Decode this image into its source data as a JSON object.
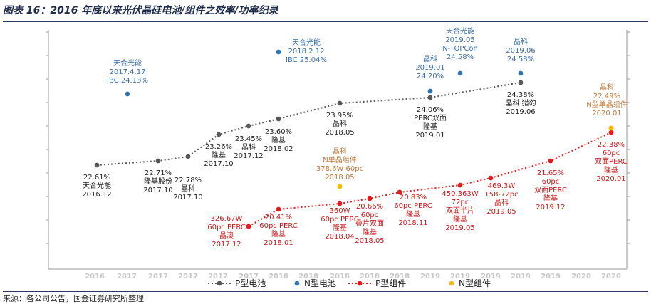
{
  "header": {
    "title": "图表 16：2016 年底以来光伏晶硅电池/组件之效率/功率纪录",
    "source": "来源：各公司公告，国金证券研究所整理"
  },
  "colors": {
    "p_cell": "#595959",
    "n_cell": "#2e75b6",
    "p_module": "#e31a1c",
    "n_module": "#f5b800"
  },
  "chart_data": {
    "type": "scatter",
    "title": "2016 年底以来光伏晶硅电池/组件之效率/功率纪录",
    "x_ticks": [
      "2016",
      "2017",
      "2017",
      "2017",
      "2017",
      "2017",
      "2018",
      "2018",
      "2018",
      "2018",
      "2018",
      "2019",
      "2019",
      "2019",
      "2019",
      "2019",
      "2020",
      "2020"
    ],
    "legend": [
      "P型电池",
      "N型电池",
      "P型组件",
      "N型组件"
    ],
    "series": [
      {
        "name": "P型电池",
        "style": "dotted-line-with-markers",
        "color_key": "p_cell",
        "points": [
          {
            "lines": [
              "22.61%",
              "天合光能",
              "2016.12"
            ]
          },
          {
            "lines": [
              "22.71%",
              "隆基股份",
              "2017.10"
            ]
          },
          {
            "lines": [
              "22.78%",
              "晶科",
              "2017.10"
            ]
          },
          {
            "lines": [
              "23.26%",
              "隆基",
              "2017.10"
            ]
          },
          {
            "lines": [
              "23.45%",
              "晶科",
              "2017.12"
            ]
          },
          {
            "lines": [
              "23.60%",
              "隆基",
              "2018.02"
            ]
          },
          {
            "lines": [
              "23.95%",
              "晶科",
              "2018.05"
            ]
          },
          {
            "lines": [
              "24.06%",
              "PERC双面",
              "隆基",
              "2019.01"
            ]
          },
          {
            "lines": [
              "24.38%",
              "晶科 猎豹",
              "2019.06"
            ]
          }
        ]
      },
      {
        "name": "N型电池",
        "style": "markers",
        "color_key": "n_cell",
        "points": [
          {
            "lines": [
              "天合光能",
              "2017.4.17",
              "IBC 24.13%"
            ]
          },
          {
            "lines": [
              "天合光能",
              "2018.2.12",
              "IBC 25.04%"
            ]
          },
          {
            "lines": [
              "晶科",
              "2019.01",
              "24.20%"
            ]
          },
          {
            "lines": [
              "天合光能",
              "2019.05",
              "N-TOPCon",
              "24.58%"
            ]
          },
          {
            "lines": [
              "晶科",
              "2019.06",
              "24.58%"
            ]
          }
        ]
      },
      {
        "name": "P型组件",
        "style": "dotted-line-with-markers",
        "color_key": "p_module",
        "points": [
          {
            "lines": [
              "326.67W",
              "60pc PERC",
              "晶澳",
              "2017.12"
            ]
          },
          {
            "lines": [
              "20.41%",
              "60pc PERC",
              "隆基",
              "2018.01"
            ]
          },
          {
            "lines": [
              "360W",
              "60pc PERC",
              "隆基",
              "2018.04"
            ]
          },
          {
            "lines": [
              "20.66%",
              "60pc",
              "叠片双面",
              "隆基",
              "2018.05"
            ]
          },
          {
            "lines": [
              "20.83%",
              "60pc PERC",
              "隆基",
              "2018.11"
            ]
          },
          {
            "lines": [
              "450.363W",
              "72pc",
              "双面半片",
              "隆基",
              "2019.05"
            ]
          },
          {
            "lines": [
              "469.3W",
              "158-72pc",
              "晶科",
              "2019.05"
            ]
          },
          {
            "lines": [
              "21.65%",
              "60pc",
              "双面PERC",
              "隆基",
              "2019.12"
            ]
          },
          {
            "lines": [
              "22.38%",
              "60pc",
              "双面PERC",
              "隆基",
              "2020.01"
            ]
          }
        ]
      },
      {
        "name": "N型组件",
        "style": "markers",
        "color_key": "n_module",
        "points": [
          {
            "lines": [
              "晶科",
              "N单晶组件",
              "378.6W 60pc",
              "2018.05"
            ]
          },
          {
            "lines": [
              "晶科",
              "22.49%",
              "N型单晶组件",
              "2020.01"
            ]
          }
        ]
      }
    ]
  }
}
